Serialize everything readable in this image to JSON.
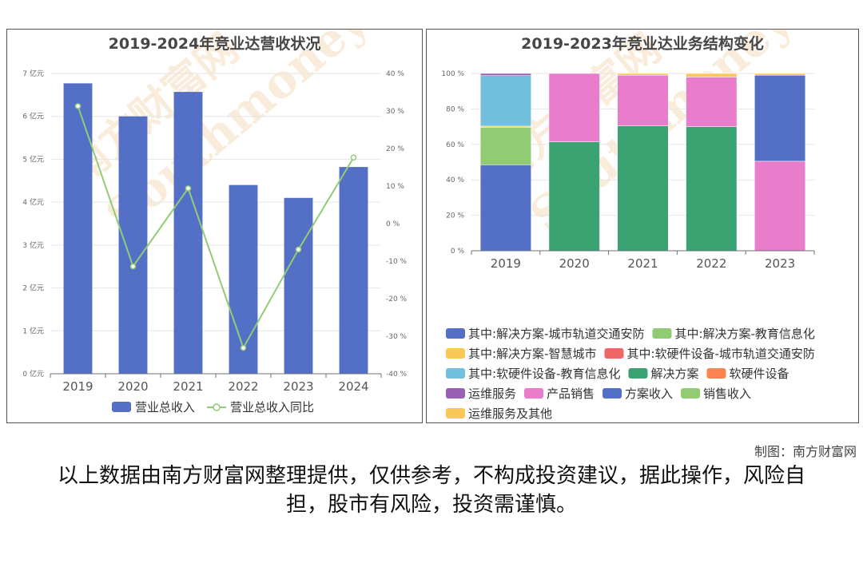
{
  "credit": "制图：南方财富网",
  "disclaimer": "以上数据由南方财富网整理提供，仅供参考，不构成投资建议，据此操作，风险自担，股市有风险，投资需谨慎。",
  "watermark": {
    "cn": "南方财富网",
    "en": "Southmoney.com"
  },
  "chart_data": [
    {
      "type": "bar",
      "title": "2019-2024年竞业达营收状况",
      "categories": [
        "2019",
        "2020",
        "2021",
        "2022",
        "2023",
        "2024"
      ],
      "y_left": {
        "min": 0,
        "max": 7,
        "ticks": [
          "0 亿元",
          "1 亿元",
          "2 亿元",
          "3 亿元",
          "4 亿元",
          "5 亿元",
          "6 亿元",
          "7 亿元"
        ]
      },
      "y_right": {
        "min": -40,
        "max": 40,
        "ticks": [
          "-40 %",
          "-30 %",
          "-20 %",
          "-10 %",
          "0 %",
          "10 %",
          "20 %",
          "30 %",
          "40 %"
        ]
      },
      "grid": true,
      "legend_position": "bottom",
      "series": [
        {
          "name": "营业总收入",
          "type": "bar",
          "axis": "left",
          "color": "#5470c6",
          "values": [
            6.77,
            6.0,
            6.57,
            4.4,
            4.1,
            4.82
          ]
        },
        {
          "name": "营业总收入同比",
          "type": "line",
          "axis": "right",
          "color": "#91cc75",
          "values": [
            31.3,
            -11.4,
            9.4,
            -33.1,
            -6.9,
            17.6
          ]
        }
      ]
    },
    {
      "type": "bar",
      "stacked": true,
      "title": "2019-2023年竞业达业务结构变化",
      "categories": [
        "2019",
        "2020",
        "2021",
        "2022",
        "2023"
      ],
      "y": {
        "min": 0,
        "max": 100,
        "ticks": [
          "0 %",
          "20 %",
          "40 %",
          "60 %",
          "80 %",
          "100 %"
        ]
      },
      "grid": true,
      "legend_position": "bottom",
      "series": [
        {
          "name": "其中:解决方案-城市轨道交通安防",
          "color": "#5470c6",
          "values": [
            48.5,
            0,
            0,
            0,
            0
          ]
        },
        {
          "name": "其中:解决方案-教育信息化",
          "color": "#91cc75",
          "values": [
            21.0,
            0,
            0,
            0,
            0
          ]
        },
        {
          "name": "其中:解决方案-智慧城市",
          "color": "#fac858",
          "values": [
            0.8,
            0,
            0,
            0,
            0
          ]
        },
        {
          "name": "其中:软硬件设备-城市轨道交通安防",
          "color": "#ee6666",
          "values": [
            0,
            0,
            0,
            0,
            0
          ]
        },
        {
          "name": "其中:软硬件设备-教育信息化",
          "color": "#73c0de",
          "values": [
            28.5,
            0,
            0,
            0,
            0
          ]
        },
        {
          "name": "解决方案",
          "color": "#3ba272",
          "values": [
            0,
            61.5,
            70.5,
            70.0,
            0
          ]
        },
        {
          "name": "软硬件设备",
          "color": "#fc8452",
          "values": [
            0,
            0,
            0,
            0,
            0
          ]
        },
        {
          "name": "运维服务",
          "color": "#9a60b4",
          "values": [
            1.2,
            0,
            0,
            0,
            0
          ]
        },
        {
          "name": "产品销售",
          "color": "#ea7ccc",
          "values": [
            0,
            38.5,
            28.5,
            28.0,
            50.5
          ]
        },
        {
          "name": "方案收入",
          "color": "#5470c6",
          "values": [
            0,
            0,
            0,
            0,
            48.5
          ]
        },
        {
          "name": "销售收入",
          "color": "#91cc75",
          "values": [
            0,
            0,
            0,
            0,
            0
          ]
        },
        {
          "name": "运维服务及其他",
          "color": "#fac858",
          "values": [
            0,
            0,
            1.0,
            2.0,
            1.0
          ]
        }
      ]
    }
  ]
}
